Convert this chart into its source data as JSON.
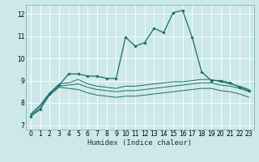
{
  "title": "",
  "xlabel": "Humidex (Indice chaleur)",
  "ylabel": "",
  "bg_color": "#cce8e8",
  "grid_color": "#aad4d4",
  "line_color": "#1a6b6b",
  "xlim": [
    -0.5,
    23.5
  ],
  "ylim": [
    6.8,
    12.4
  ],
  "xticks": [
    0,
    1,
    2,
    3,
    4,
    5,
    6,
    7,
    8,
    9,
    10,
    11,
    12,
    13,
    14,
    15,
    16,
    17,
    18,
    19,
    20,
    21,
    22,
    23
  ],
  "yticks": [
    7,
    8,
    9,
    10,
    11,
    12
  ],
  "line1_x": [
    0,
    1,
    2,
    3,
    4,
    5,
    6,
    7,
    8,
    9,
    10,
    11,
    12,
    13,
    14,
    15,
    16,
    17,
    18,
    19,
    20,
    21,
    22,
    23
  ],
  "line1_y": [
    7.4,
    7.7,
    8.4,
    8.8,
    9.3,
    9.3,
    9.2,
    9.2,
    9.1,
    9.1,
    10.95,
    10.55,
    10.7,
    11.35,
    11.15,
    12.05,
    12.15,
    10.95,
    9.4,
    9.0,
    9.0,
    8.9,
    8.7,
    8.55
  ],
  "line2_x": [
    0,
    1,
    2,
    3,
    4,
    5,
    6,
    7,
    8,
    9,
    10,
    11,
    12,
    13,
    14,
    15,
    16,
    17,
    18,
    19,
    20,
    21,
    22,
    23
  ],
  "line2_y": [
    7.5,
    7.9,
    8.45,
    8.85,
    8.9,
    9.05,
    8.85,
    8.75,
    8.7,
    8.65,
    8.75,
    8.75,
    8.8,
    8.85,
    8.9,
    8.95,
    8.95,
    9.0,
    9.05,
    9.05,
    8.95,
    8.85,
    8.75,
    8.6
  ],
  "line3_x": [
    0,
    1,
    2,
    3,
    4,
    5,
    6,
    7,
    8,
    9,
    10,
    11,
    12,
    13,
    14,
    15,
    16,
    17,
    18,
    19,
    20,
    21,
    22,
    23
  ],
  "line3_y": [
    7.45,
    7.85,
    8.4,
    8.75,
    8.8,
    8.85,
    8.7,
    8.6,
    8.55,
    8.5,
    8.55,
    8.55,
    8.6,
    8.65,
    8.7,
    8.75,
    8.8,
    8.85,
    8.9,
    8.9,
    8.8,
    8.75,
    8.65,
    8.5
  ],
  "line4_x": [
    0,
    1,
    2,
    3,
    4,
    5,
    6,
    7,
    8,
    9,
    10,
    11,
    12,
    13,
    14,
    15,
    16,
    17,
    18,
    19,
    20,
    21,
    22,
    23
  ],
  "line4_y": [
    7.4,
    7.75,
    8.35,
    8.7,
    8.65,
    8.6,
    8.45,
    8.35,
    8.3,
    8.25,
    8.3,
    8.3,
    8.35,
    8.4,
    8.45,
    8.5,
    8.55,
    8.6,
    8.65,
    8.65,
    8.55,
    8.5,
    8.4,
    8.25
  ],
  "xlabel_fontsize": 6.5,
  "tick_fontsize": 5.5
}
